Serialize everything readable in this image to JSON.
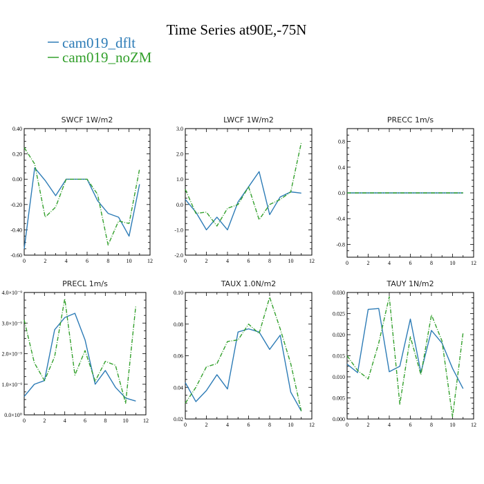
{
  "figure": {
    "title": "Time Series at90E,-75N",
    "legend": [
      {
        "name": "cam019_dflt",
        "color": "#2c7bb6"
      },
      {
        "name": "cam019_noZM",
        "color": "#33a02c"
      }
    ]
  },
  "chart_data": [
    {
      "type": "line",
      "title": "SWCF   1W/m2",
      "x": [
        0,
        1,
        2,
        3,
        4,
        5,
        6,
        7,
        8,
        9,
        10,
        11
      ],
      "xlim": [
        0,
        12
      ],
      "xticks": [
        0,
        2,
        4,
        6,
        8,
        10,
        12
      ],
      "ylim": [
        -0.6,
        0.4
      ],
      "yticks": [
        -0.6,
        -0.4,
        -0.2,
        0,
        0.2,
        0.4
      ],
      "ytick_labels": [
        "-0.60",
        "-0.40",
        "-0.20",
        "0.00",
        "0.20",
        "0.40"
      ],
      "series": [
        {
          "name": "cam019_dflt",
          "values": [
            -0.55,
            0.09,
            -0.01,
            -0.13,
            0.0,
            0.0,
            0.0,
            -0.17,
            -0.27,
            -0.3,
            -0.45,
            -0.04
          ]
        },
        {
          "name": "cam019_noZM",
          "values": [
            0.25,
            0.12,
            -0.3,
            -0.22,
            0.0,
            0.0,
            0.0,
            -0.12,
            -0.52,
            -0.33,
            -0.35,
            0.08
          ]
        }
      ]
    },
    {
      "type": "line",
      "title": "LWCF   1W/m2",
      "x": [
        0,
        1,
        2,
        3,
        4,
        5,
        6,
        7,
        8,
        9,
        10,
        11
      ],
      "xlim": [
        0,
        12
      ],
      "xticks": [
        0,
        2,
        4,
        6,
        8,
        10,
        12
      ],
      "ylim": [
        -2,
        3
      ],
      "yticks": [
        -2,
        -1,
        0,
        1,
        2,
        3
      ],
      "ytick_labels": [
        "-2.0",
        "-1.0",
        "0.0",
        "1.0",
        "2.0",
        "3.0"
      ],
      "series": [
        {
          "name": "cam019_dflt",
          "values": [
            0.2,
            -0.3,
            -1.0,
            -0.5,
            -1.0,
            0.1,
            0.7,
            1.3,
            -0.4,
            0.3,
            0.5,
            0.45
          ]
        },
        {
          "name": "cam019_noZM",
          "values": [
            0.6,
            -0.35,
            -0.3,
            -0.85,
            -0.15,
            0.0,
            0.7,
            -0.6,
            0.0,
            0.2,
            0.5,
            2.45
          ]
        }
      ]
    },
    {
      "type": "line",
      "title": "PRECC   1m/s",
      "x": [
        0,
        1,
        2,
        3,
        4,
        5,
        6,
        7,
        8,
        9,
        10,
        11
      ],
      "xlim": [
        0,
        12
      ],
      "xticks": [
        0,
        2,
        4,
        6,
        8,
        10,
        12
      ],
      "ylim": [
        -1,
        1
      ],
      "yticks": [
        -0.8,
        -0.4,
        0,
        0.4,
        0.8
      ],
      "ytick_labels": [
        "-0.8",
        "-0.4",
        "0.0",
        "0.4",
        "0.8"
      ],
      "series": [
        {
          "name": "cam019_dflt",
          "values": [
            0,
            0,
            0,
            0,
            0,
            0,
            0,
            0,
            0,
            0,
            0,
            0
          ]
        },
        {
          "name": "cam019_noZM",
          "values": [
            0,
            0,
            0,
            0,
            0,
            0,
            0,
            0,
            0,
            0,
            0,
            0
          ]
        }
      ]
    },
    {
      "type": "line",
      "title": "PRECL   1m/s",
      "x": [
        0,
        1,
        2,
        3,
        4,
        5,
        6,
        7,
        8,
        9,
        10,
        11
      ],
      "xlim": [
        0,
        12
      ],
      "xticks": [
        0,
        2,
        4,
        6,
        8,
        10,
        12
      ],
      "ylim": [
        0,
        4e-09
      ],
      "yticks": [
        0,
        1e-09,
        2e-09,
        3e-09,
        4e-09
      ],
      "ytick_labels": [
        "0.0×10⁰",
        "1.0×10⁻⁹",
        "2.0×10⁻⁹",
        "3.0×10⁻⁹",
        "4.0×10⁻⁹"
      ],
      "series": [
        {
          "name": "cam019_dflt",
          "values": [
            6e-10,
            1e-09,
            1.12e-09,
            2.78e-09,
            3.18e-09,
            3.32e-09,
            2.45e-09,
            1e-09,
            1.45e-09,
            9e-10,
            5.5e-10,
            4.5e-10
          ]
        },
        {
          "name": "cam019_noZM",
          "values": [
            3.1e-09,
            1.7e-09,
            1.12e-09,
            1.9e-09,
            3.8e-09,
            1.3e-09,
            2.1e-09,
            1.1e-09,
            1.75e-09,
            1.62e-09,
            3.8e-10,
            3.55e-09
          ]
        }
      ]
    },
    {
      "type": "line",
      "title": "TAUX   1.0N/m2",
      "x": [
        0,
        1,
        2,
        3,
        4,
        5,
        6,
        7,
        8,
        9,
        10,
        11
      ],
      "xlim": [
        0,
        12
      ],
      "xticks": [
        0,
        2,
        4,
        6,
        8,
        10,
        12
      ],
      "ylim": [
        0.02,
        0.1
      ],
      "yticks": [
        0.02,
        0.04,
        0.06,
        0.08,
        0.1
      ],
      "ytick_labels": [
        "0.02",
        "0.04",
        "0.06",
        "0.08",
        "0.10"
      ],
      "series": [
        {
          "name": "cam019_dflt",
          "values": [
            0.043,
            0.031,
            0.038,
            0.048,
            0.039,
            0.075,
            0.077,
            0.075,
            0.064,
            0.073,
            0.037,
            0.025
          ]
        },
        {
          "name": "cam019_noZM",
          "values": [
            0.03,
            0.04,
            0.053,
            0.055,
            0.069,
            0.07,
            0.08,
            0.074,
            0.097,
            0.077,
            0.055,
            0.025
          ]
        }
      ]
    },
    {
      "type": "line",
      "title": "TAUY   1N/m2",
      "x": [
        0,
        1,
        2,
        3,
        4,
        5,
        6,
        7,
        8,
        9,
        10,
        11
      ],
      "xlim": [
        0,
        12
      ],
      "xticks": [
        0,
        2,
        4,
        6,
        8,
        10,
        12
      ],
      "ylim": [
        0,
        0.03
      ],
      "yticks": [
        0,
        0.005,
        0.01,
        0.015,
        0.02,
        0.025,
        0.03
      ],
      "ytick_labels": [
        "0.000",
        "0.005",
        "0.010",
        "0.015",
        "0.020",
        "0.025",
        "0.030"
      ],
      "series": [
        {
          "name": "cam019_dflt",
          "values": [
            0.013,
            0.011,
            0.026,
            0.0262,
            0.0112,
            0.0125,
            0.0237,
            0.011,
            0.021,
            0.018,
            0.012,
            0.0072
          ]
        },
        {
          "name": "cam019_noZM",
          "values": [
            0.015,
            0.0115,
            0.0095,
            0.018,
            0.029,
            0.0035,
            0.0195,
            0.0105,
            0.0247,
            0.0185,
            0.0005,
            0.0205
          ]
        }
      ]
    }
  ]
}
